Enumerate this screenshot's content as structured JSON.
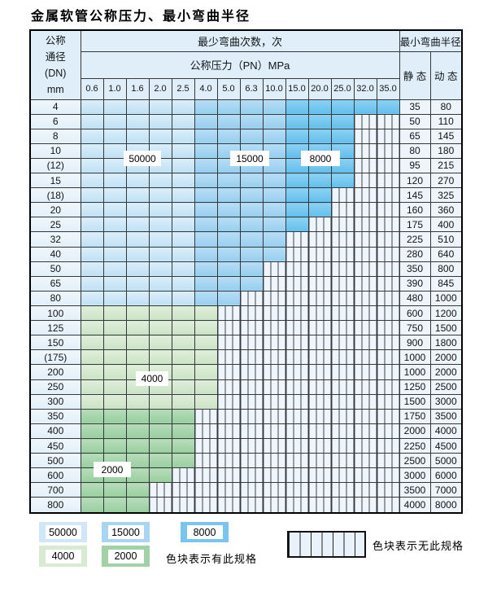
{
  "page": {
    "title": "金属软管公称压力、最小弯曲半径"
  },
  "table": {
    "header": {
      "dn_lines": [
        "公称",
        "通径",
        "(DN)",
        "mm"
      ],
      "bend_cycles": "最少弯曲次数，次",
      "pressure": "公称压力（PN）MPa",
      "min_radius": "最小弯曲半径",
      "static": "静 态",
      "dynamic": "动 态"
    },
    "columns": [
      "0.6",
      "1.0",
      "1.6",
      "2.0",
      "2.5",
      "4.0",
      "5.0",
      "6.3",
      "10.0",
      "15.0",
      "20.0",
      "25.0",
      "32.0",
      "35.0"
    ],
    "rows": [
      {
        "dn": "4",
        "span": 14,
        "palette": "blue",
        "static": "35",
        "dynamic": "80"
      },
      {
        "dn": "6",
        "span": 12,
        "palette": "blue",
        "static": "50",
        "dynamic": "110"
      },
      {
        "dn": "8",
        "span": 12,
        "palette": "blue",
        "static": "65",
        "dynamic": "145"
      },
      {
        "dn": "10",
        "span": 12,
        "palette": "blue",
        "static": "80",
        "dynamic": "180"
      },
      {
        "dn": "(12)",
        "span": 12,
        "palette": "blue",
        "static": "95",
        "dynamic": "215"
      },
      {
        "dn": "15",
        "span": 12,
        "palette": "blue",
        "static": "120",
        "dynamic": "270"
      },
      {
        "dn": "(18)",
        "span": 11,
        "palette": "blue",
        "static": "145",
        "dynamic": "325"
      },
      {
        "dn": "20",
        "span": 11,
        "palette": "blue",
        "static": "160",
        "dynamic": "360"
      },
      {
        "dn": "25",
        "span": 10,
        "palette": "blue",
        "static": "175",
        "dynamic": "400"
      },
      {
        "dn": "32",
        "span": 9,
        "palette": "blue",
        "static": "225",
        "dynamic": "510"
      },
      {
        "dn": "40",
        "span": 9,
        "palette": "blue",
        "static": "280",
        "dynamic": "640"
      },
      {
        "dn": "50",
        "span": 8,
        "palette": "blue",
        "static": "350",
        "dynamic": "800"
      },
      {
        "dn": "65",
        "span": 8,
        "palette": "blue",
        "static": "390",
        "dynamic": "845"
      },
      {
        "dn": "80",
        "span": 7,
        "palette": "blue",
        "static": "480",
        "dynamic": "1000"
      },
      {
        "dn": "100",
        "span": 6,
        "palette": "g1",
        "static": "600",
        "dynamic": "1200"
      },
      {
        "dn": "125",
        "span": 6,
        "palette": "g1",
        "static": "750",
        "dynamic": "1500"
      },
      {
        "dn": "150",
        "span": 6,
        "palette": "g1",
        "static": "900",
        "dynamic": "1800"
      },
      {
        "dn": "(175)",
        "span": 6,
        "palette": "g1",
        "static": "1000",
        "dynamic": "2000"
      },
      {
        "dn": "200",
        "span": 6,
        "palette": "g1",
        "static": "1000",
        "dynamic": "2000"
      },
      {
        "dn": "250",
        "span": 6,
        "palette": "g1",
        "static": "1250",
        "dynamic": "2500"
      },
      {
        "dn": "300",
        "span": 6,
        "palette": "g1",
        "static": "1500",
        "dynamic": "3000"
      },
      {
        "dn": "350",
        "span": 5,
        "palette": "g2",
        "static": "1750",
        "dynamic": "3500"
      },
      {
        "dn": "400",
        "span": 5,
        "palette": "g2",
        "static": "2000",
        "dynamic": "4000"
      },
      {
        "dn": "450",
        "span": 5,
        "palette": "g2",
        "static": "2250",
        "dynamic": "4500"
      },
      {
        "dn": "500",
        "span": 5,
        "palette": "g2",
        "static": "2500",
        "dynamic": "5000"
      },
      {
        "dn": "600",
        "span": 4,
        "palette": "g2",
        "static": "3000",
        "dynamic": "6000"
      },
      {
        "dn": "700",
        "span": 3,
        "palette": "g2",
        "static": "3500",
        "dynamic": "7000"
      },
      {
        "dn": "800",
        "span": 3,
        "palette": "g2",
        "static": "4000",
        "dynamic": "8000"
      }
    ]
  },
  "overlays": {
    "l50000": "50000",
    "l15000": "15000",
    "l8000": "8000",
    "l4000": "4000",
    "l2000": "2000"
  },
  "legend": {
    "swatches": [
      {
        "label": "50000",
        "color": "#cfe7f8"
      },
      {
        "label": "15000",
        "color": "#a8d6f2"
      },
      {
        "label": "8000",
        "color": "#7ac5ee"
      },
      {
        "label": "4000",
        "color": "#d9ead2"
      },
      {
        "label": "2000",
        "color": "#a0d2a6"
      }
    ],
    "has_spec_text": "色块表示有此规格",
    "no_spec_text": "色块表示无此规格"
  },
  "colors": {
    "cycles_50000": "#cfe7f8",
    "cycles_15000": "#a8d6f2",
    "cycles_8000": "#7ac5ee",
    "cycles_4000": "#d9ead2",
    "cycles_2000": "#a0d2a6",
    "no_spec_bg": "#eef5fc",
    "header_bg": "#dfeef9",
    "grid_line": "#33383d"
  }
}
